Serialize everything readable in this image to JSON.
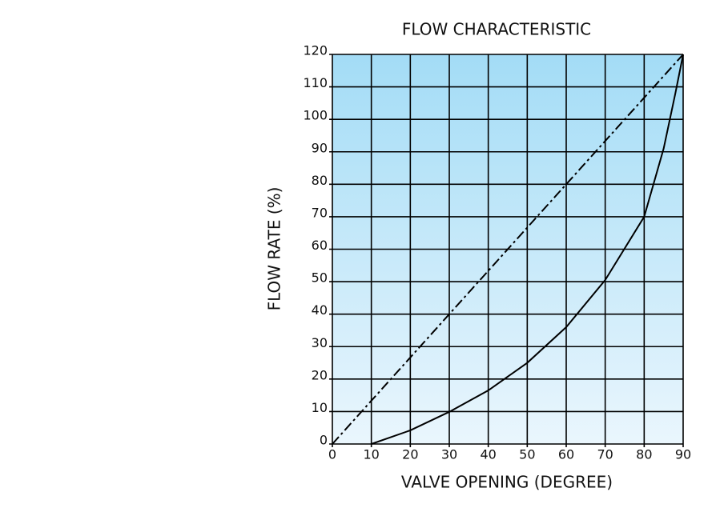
{
  "chart_data": {
    "type": "line",
    "title": "FLOW CHARACTERISTIC",
    "x_label": "VALVE OPENING (DEGREE)",
    "y_label": "FLOW RATE (%)",
    "xlim": [
      0,
      90
    ],
    "xticks": [
      0,
      10,
      20,
      30,
      40,
      50,
      60,
      70,
      80,
      90
    ],
    "ylim": [
      0,
      120
    ],
    "yticks": [
      0,
      10,
      20,
      30,
      40,
      50,
      60,
      70,
      80,
      90,
      100,
      110,
      120
    ],
    "grid": true,
    "series": [
      {
        "color": "#000000",
        "style": "dashed",
        "x": [
          0,
          90
        ],
        "values": [
          0,
          120
        ]
      },
      {
        "color": "#000000",
        "style": "solid",
        "x": [
          10,
          20,
          30,
          40,
          50,
          60,
          70,
          80,
          85,
          88,
          90
        ],
        "values": [
          0,
          4.2,
          9.9,
          16.5,
          25,
          36,
          50.5,
          70,
          91,
          108,
          120
        ]
      }
    ]
  }
}
